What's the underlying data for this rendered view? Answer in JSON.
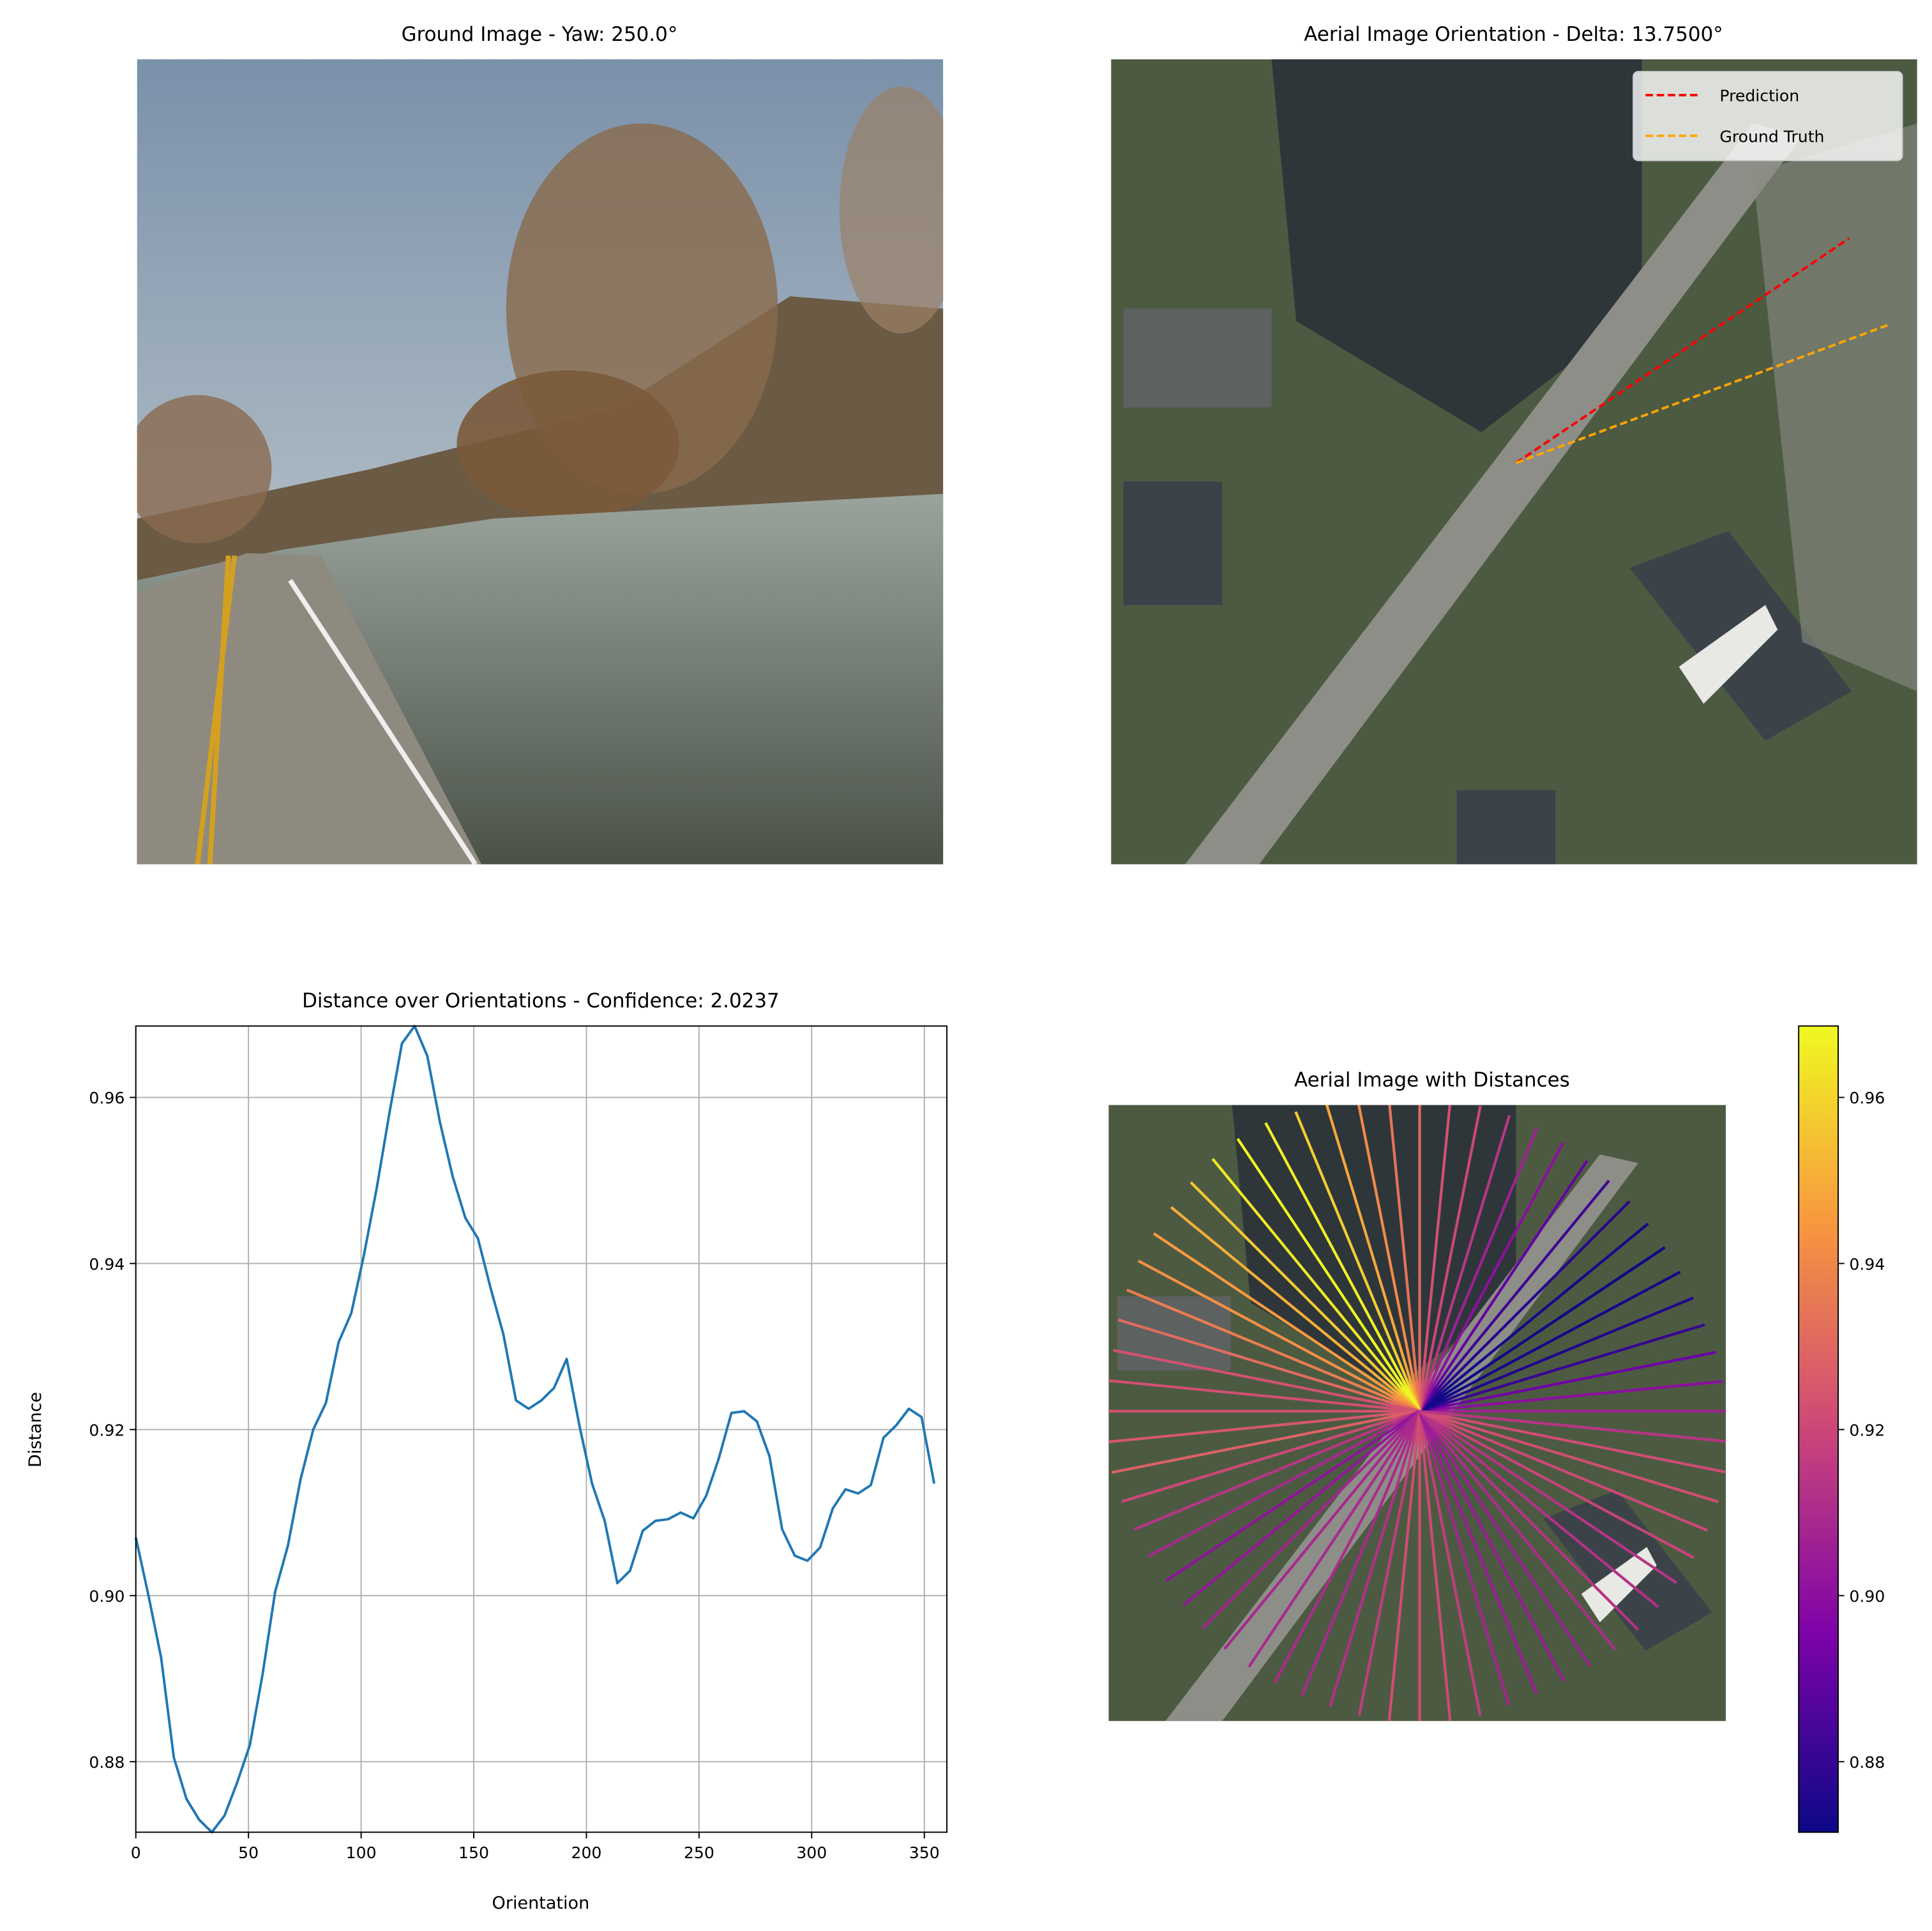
{
  "chart_data": [
    {
      "type": "image",
      "title": "Ground Image - Yaw: 250.0°"
    },
    {
      "type": "image",
      "title": "Aerial Image Orientation - Delta: 13.7500°",
      "series": [
        {
          "name": "Prediction",
          "color": "#ff0000"
        },
        {
          "name": "Ground Truth",
          "color": "#ffa500"
        }
      ],
      "legend": "upper right"
    },
    {
      "type": "line",
      "title": "Distance over Orientations - Confidence: 2.0237",
      "xlabel": "Orientation",
      "ylabel": "Distance",
      "color": "#1f77b4",
      "grid": true,
      "x": [
        0,
        5.625,
        11.25,
        16.875,
        22.5,
        28.125,
        33.75,
        39.375,
        45,
        50.625,
        56.25,
        61.875,
        67.5,
        73.125,
        78.75,
        84.375,
        90,
        95.625,
        101.25,
        106.875,
        112.5,
        118.125,
        123.75,
        129.375,
        135,
        140.625,
        146.25,
        151.875,
        157.5,
        163.125,
        168.75,
        174.375,
        180,
        185.625,
        191.25,
        196.875,
        202.5,
        208.125,
        213.75,
        219.375,
        225,
        230.625,
        236.25,
        241.875,
        247.5,
        253.125,
        258.75,
        264.375,
        270,
        275.625,
        281.25,
        286.875,
        292.5,
        298.125,
        303.75,
        309.375,
        315,
        320.625,
        326.25,
        331.875,
        337.5,
        343.125,
        348.75,
        354.375
      ],
      "values": [
        0.907,
        0.9,
        0.8925,
        0.8805,
        0.8755,
        0.873,
        0.8715,
        0.8735,
        0.8775,
        0.882,
        0.8905,
        0.9005,
        0.906,
        0.914,
        0.92,
        0.9232,
        0.9305,
        0.934,
        0.941,
        0.949,
        0.958,
        0.9665,
        0.9686,
        0.965,
        0.957,
        0.9505,
        0.9455,
        0.943,
        0.937,
        0.9315,
        0.9235,
        0.9225,
        0.9235,
        0.925,
        0.9285,
        0.9205,
        0.9135,
        0.909,
        0.9015,
        0.903,
        0.9078,
        0.909,
        0.9092,
        0.91,
        0.9093,
        0.912,
        0.9165,
        0.922,
        0.9222,
        0.921,
        0.9168,
        0.908,
        0.9048,
        0.9042,
        0.9058,
        0.9105,
        0.9128,
        0.9123,
        0.9133,
        0.919,
        0.9205,
        0.9225,
        0.9215,
        0.9135
      ],
      "xlim": [
        0,
        360
      ],
      "xticks": [
        0,
        50,
        100,
        150,
        200,
        250,
        300,
        350
      ],
      "ylim": [
        0.8715,
        0.9686
      ],
      "yticks": [
        0.88,
        {
          "value": 0.9,
          "label": "0.90"
        },
        0.92,
        0.94,
        0.96
      ]
    },
    {
      "type": "radial",
      "title": "Aerial Image with Distances",
      "colormap": "plasma"
    }
  ]
}
